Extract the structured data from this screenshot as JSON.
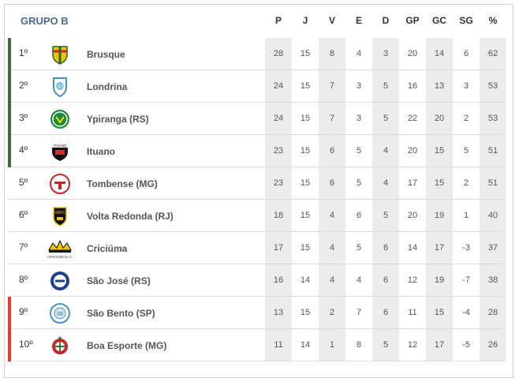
{
  "group_title": "GRUPO B",
  "headers": [
    "P",
    "J",
    "V",
    "E",
    "D",
    "GP",
    "GC",
    "SG",
    "%"
  ],
  "colors": {
    "promotion": "#3b6e3b",
    "relegation": "#e53935",
    "column_shade": "#ececec",
    "title": "#4a6a92"
  },
  "rows": [
    {
      "pos": "1º",
      "team": "Brusque",
      "crest": "brusque-crest-icon",
      "zone": "promotion",
      "stats": [
        "28",
        "15",
        "8",
        "4",
        "3",
        "20",
        "14",
        "6",
        "62"
      ]
    },
    {
      "pos": "2º",
      "team": "Londrina",
      "crest": "londrina-crest-icon",
      "zone": "promotion",
      "stats": [
        "24",
        "15",
        "7",
        "3",
        "5",
        "16",
        "13",
        "3",
        "53"
      ]
    },
    {
      "pos": "3º",
      "team": "Ypiranga (RS)",
      "crest": "ypiranga-crest-icon",
      "zone": "promotion",
      "stats": [
        "24",
        "15",
        "7",
        "3",
        "5",
        "22",
        "20",
        "2",
        "53"
      ]
    },
    {
      "pos": "4º",
      "team": "Ituano",
      "crest": "ituano-crest-icon",
      "zone": "promotion",
      "stats": [
        "23",
        "15",
        "6",
        "5",
        "4",
        "20",
        "15",
        "5",
        "51"
      ]
    },
    {
      "pos": "5º",
      "team": "Tombense (MG)",
      "crest": "tombense-crest-icon",
      "zone": "none",
      "stats": [
        "23",
        "15",
        "6",
        "5",
        "4",
        "17",
        "15",
        "2",
        "51"
      ]
    },
    {
      "pos": "6º",
      "team": "Volta Redonda (RJ)",
      "crest": "volta-redonda-crest-icon",
      "zone": "none",
      "stats": [
        "18",
        "15",
        "4",
        "6",
        "5",
        "20",
        "19",
        "1",
        "40"
      ]
    },
    {
      "pos": "7º",
      "team": "Criciúma",
      "crest": "criciuma-crest-icon",
      "zone": "none",
      "stats": [
        "17",
        "15",
        "4",
        "5",
        "6",
        "14",
        "17",
        "-3",
        "37"
      ]
    },
    {
      "pos": "8º",
      "team": "São José (RS)",
      "crest": "sao-jose-crest-icon",
      "zone": "none",
      "stats": [
        "16",
        "14",
        "4",
        "4",
        "6",
        "12",
        "19",
        "-7",
        "38"
      ]
    },
    {
      "pos": "9º",
      "team": "São Bento (SP)",
      "crest": "sao-bento-crest-icon",
      "zone": "relegation",
      "stats": [
        "13",
        "15",
        "2",
        "7",
        "6",
        "11",
        "15",
        "-4",
        "28"
      ]
    },
    {
      "pos": "10º",
      "team": "Boa Esporte (MG)",
      "crest": "boa-esporte-crest-icon",
      "zone": "relegation",
      "stats": [
        "11",
        "14",
        "1",
        "8",
        "5",
        "12",
        "17",
        "-5",
        "26"
      ]
    }
  ],
  "crest_labels": {
    "criciuma": "CRICIÚMA E.C."
  }
}
